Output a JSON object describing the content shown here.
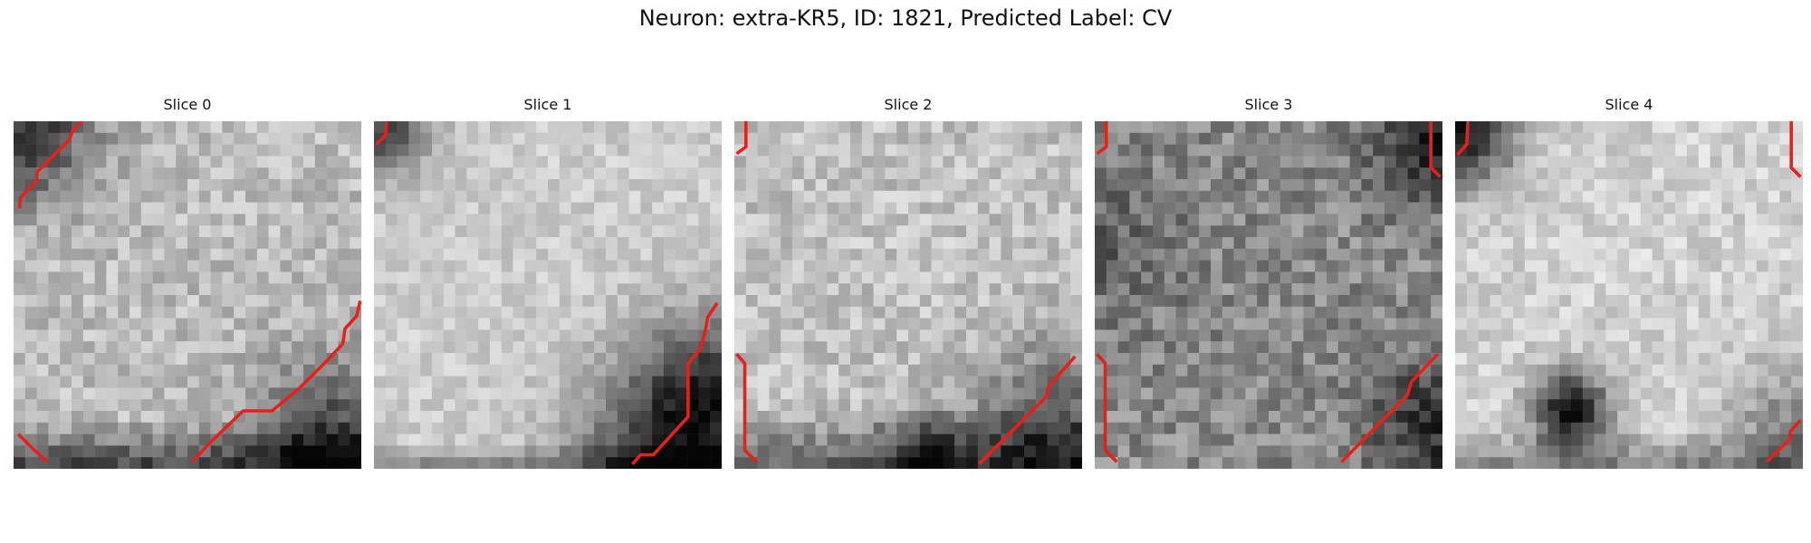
{
  "figure": {
    "title": "Neuron: extra-KR5, ID: 1821, Predicted Label: CV"
  },
  "colors": {
    "contour": "#e8201a",
    "colormap": "gray"
  },
  "panels": [
    {
      "title": "Slice 0",
      "dark_regions": [
        "top-left corner",
        "bottom edge",
        "bottom-right corner"
      ]
    },
    {
      "title": "Slice 1",
      "dark_regions": [
        "top-left corner",
        "bottom-right corner"
      ]
    },
    {
      "title": "Slice 2",
      "dark_regions": [
        "bottom edge",
        "bottom-right corner"
      ]
    },
    {
      "title": "Slice 3",
      "dark_regions": [
        "top-right corner",
        "bottom-right corner"
      ]
    },
    {
      "title": "Slice 4",
      "dark_regions": [
        "top-left corner",
        "lower-left blob",
        "bottom edge"
      ]
    }
  ]
}
